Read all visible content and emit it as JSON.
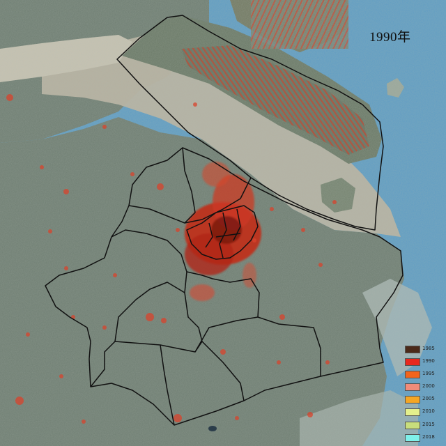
{
  "map": {
    "title": "1990年",
    "colors": {
      "water": "#5e9ec6",
      "land": "#6f7f73",
      "mudflat": "#bdb9a8",
      "boundary": "#111111",
      "urban": "#d9361f"
    }
  },
  "legend": {
    "items": [
      {
        "year": "1985",
        "color": "#4b2a1a"
      },
      {
        "year": "1990",
        "color": "#e8281e"
      },
      {
        "year": "1995",
        "color": "#f2641c"
      },
      {
        "year": "2000",
        "color": "#f28c7a"
      },
      {
        "year": "2005",
        "color": "#f5a623"
      },
      {
        "year": "2010",
        "color": "#e4f08c"
      },
      {
        "year": "2015",
        "color": "#c8de7c"
      },
      {
        "year": "2018",
        "color": "#7ff0ea"
      }
    ]
  }
}
